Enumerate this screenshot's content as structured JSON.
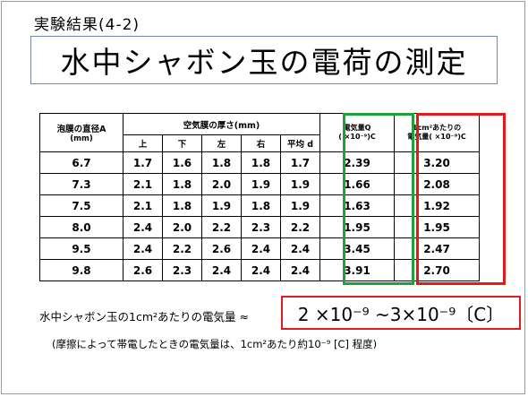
{
  "slide": {
    "subtitle": "実験結果(4-2)",
    "title": "水中シャボン玉の電荷の測定"
  },
  "table": {
    "header_diameter": "泡膜の直径A",
    "header_diameter_unit": "(mm)",
    "header_thickness": "空気膜の厚さ(mm)",
    "header_charge": "電気量Q",
    "header_charge_unit": "( ×10⁻⁹)C",
    "header_density": "1cm²あたりの",
    "header_density2": "電気量( ×10⁻⁹)C",
    "sub_headers": [
      "上",
      "下",
      "左",
      "右",
      "平均 d"
    ],
    "rows": [
      [
        "6.7",
        "1.7",
        "1.6",
        "1.8",
        "1.8",
        "1.7",
        "2.39",
        "3.20"
      ],
      [
        "7.3",
        "2.1",
        "1.8",
        "2.0",
        "1.9",
        "1.9",
        "1.66",
        "2.08"
      ],
      [
        "7.5",
        "2.1",
        "1.8",
        "1.9",
        "1.8",
        "1.9",
        "1.63",
        "1.92"
      ],
      [
        "8.0",
        "2.4",
        "2.0",
        "2.2",
        "2.3",
        "2.2",
        "1.95",
        "1.95"
      ],
      [
        "9.5",
        "2.4",
        "2.2",
        "2.6",
        "2.4",
        "2.4",
        "3.45",
        "2.47"
      ],
      [
        "9.8",
        "2.6",
        "2.3",
        "2.4",
        "2.4",
        "2.4",
        "3.91",
        "2.70"
      ]
    ]
  },
  "result": {
    "label": "水中シャボン玉の1cm²あたりの電気量 ≈",
    "value": "2 ×10⁻⁹ ~3×10⁻⁹〔C〕"
  },
  "note": "(摩擦によって帯電したときの電気量は、1cm²あたり約10⁻⁹ [C] 程度)",
  "colors": {
    "green_highlight": "#1fa03b",
    "red_highlight": "#e01b1b",
    "title_border": "#6f8bb5"
  }
}
